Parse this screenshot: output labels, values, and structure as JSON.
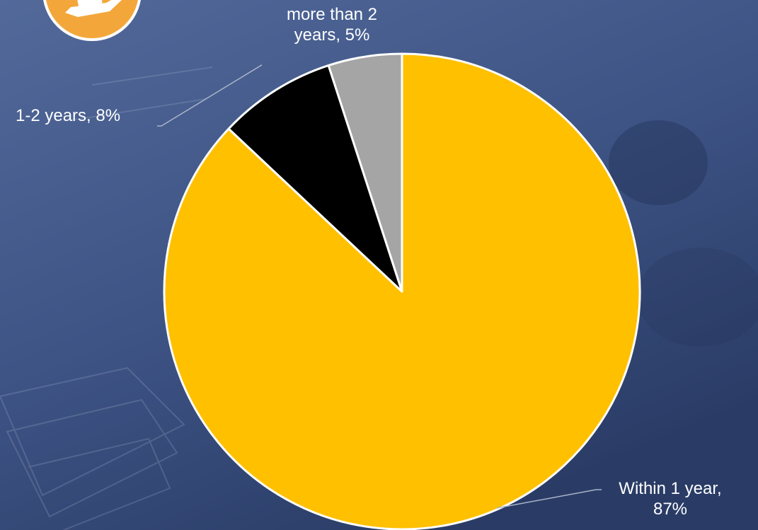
{
  "colors": {
    "background_top": "#4b6290",
    "background_bottom": "#2c3f6b",
    "icon_badge": "#f3a73a",
    "slice_within_1_year": "#ffc000",
    "slice_1_2_years": "#000000",
    "slice_more_than_2_years": "#a5a5a5",
    "leader_line": "#a9b4c8",
    "label_text": "#ffffff"
  },
  "icon": {
    "name": "hand-holding-money-icon"
  },
  "chart_data": {
    "type": "pie",
    "start_angle_deg": 0,
    "direction": "clockwise",
    "slices": [
      {
        "label": "Within 1 year",
        "value": 87,
        "color": "#ffc000"
      },
      {
        "label": "1-2 years",
        "value": 8,
        "color": "#000000"
      },
      {
        "label": "more than 2 years",
        "value": 5,
        "color": "#a5a5a5"
      }
    ],
    "data_labels": {
      "more_than_2_years": "more than 2 years, 5%",
      "one_to_two_years": "1-2 years, 8%",
      "within_1_year": "Within 1 year, 87%"
    }
  }
}
